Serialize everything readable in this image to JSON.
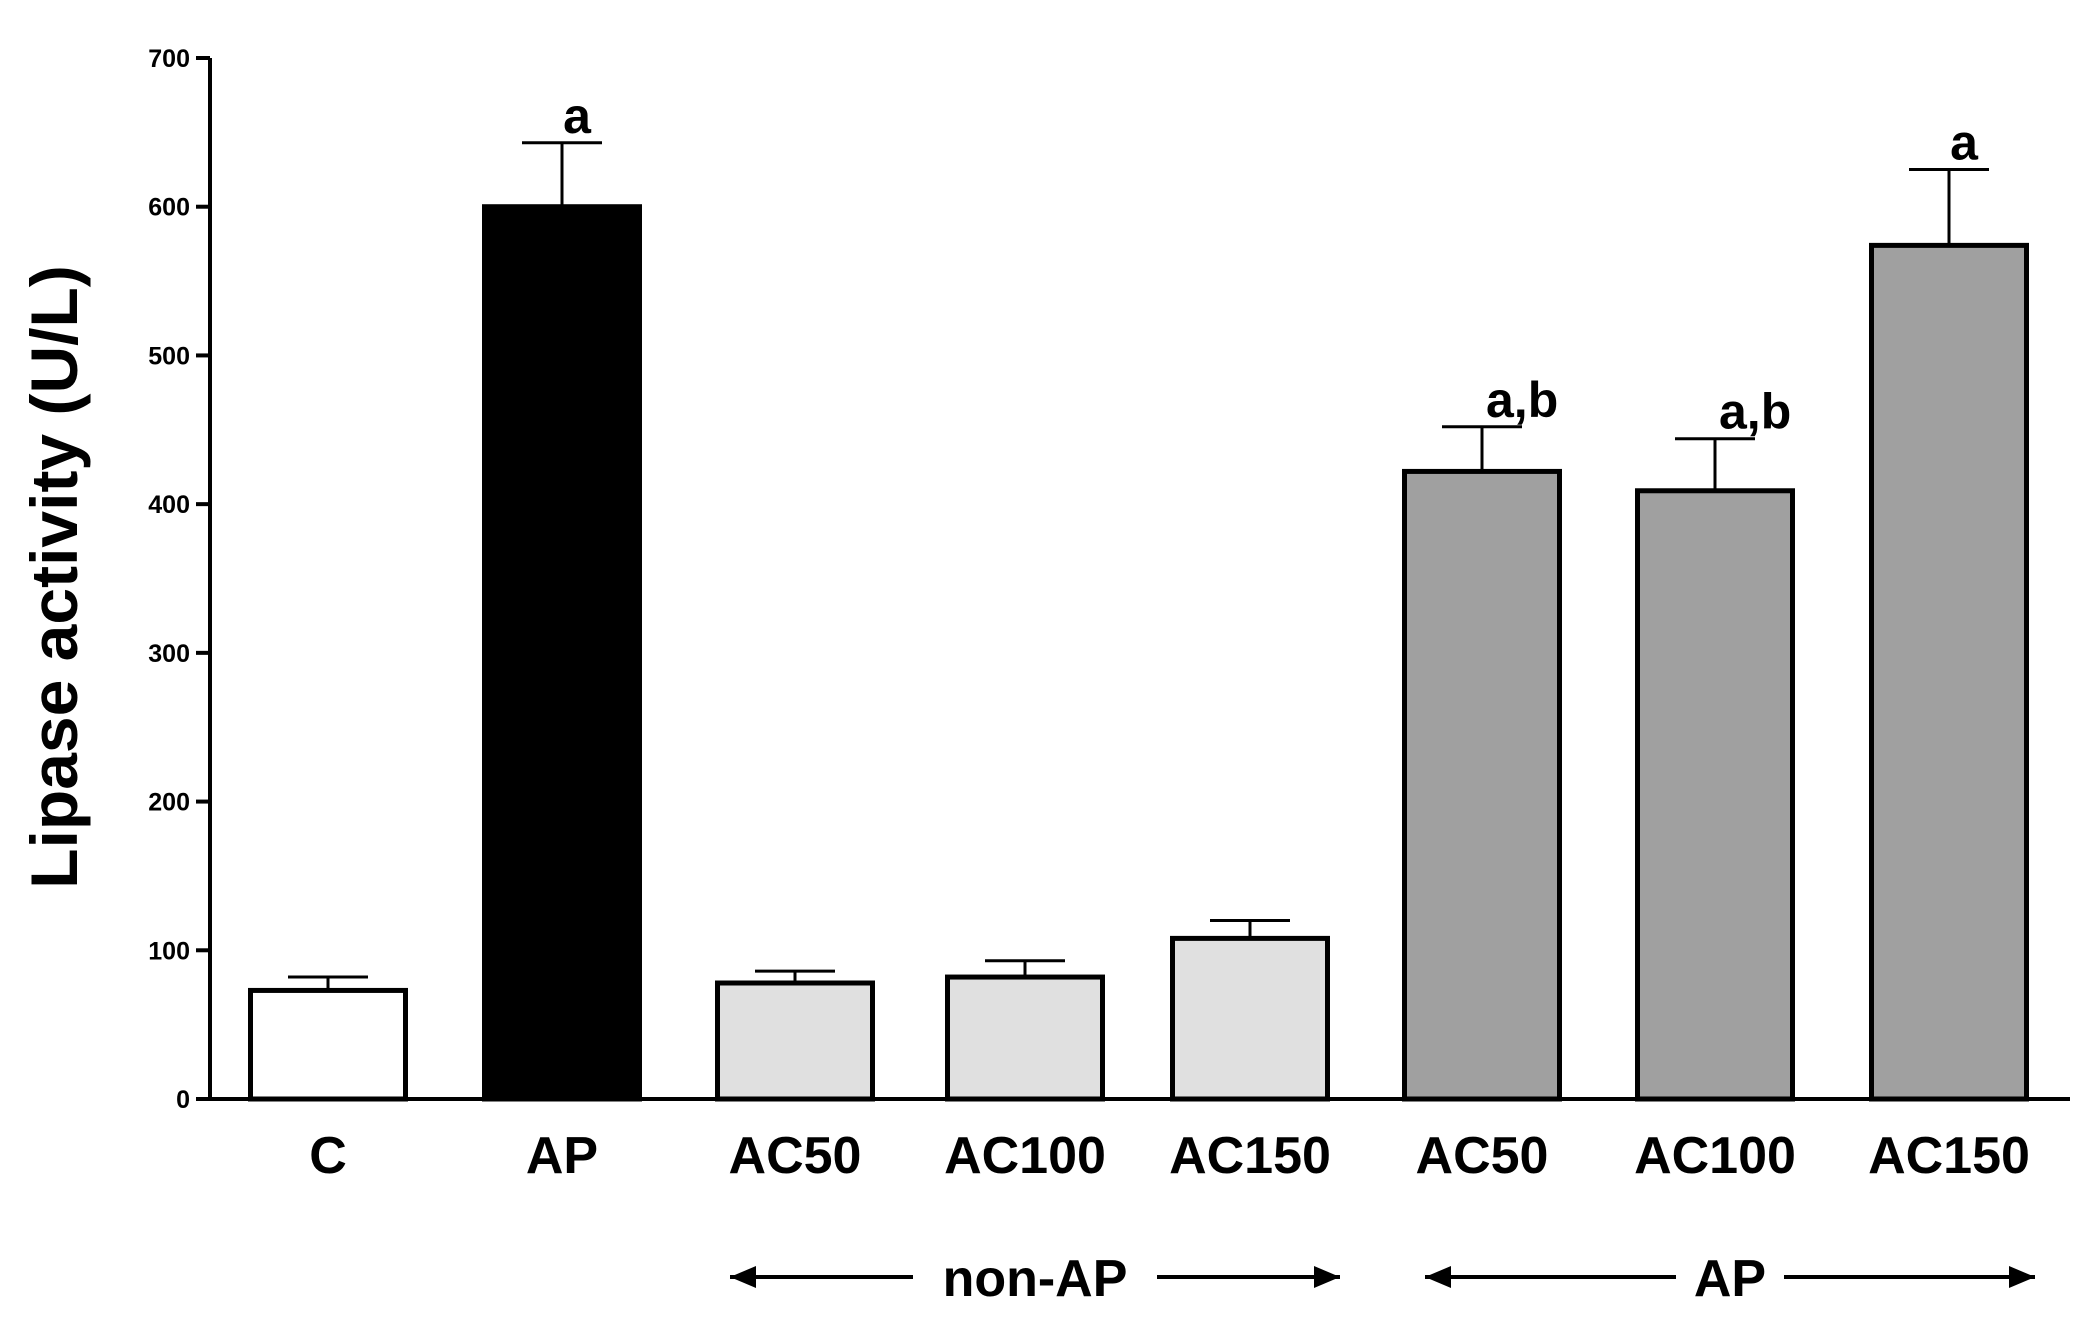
{
  "chart_data": {
    "type": "bar",
    "title": "",
    "xlabel": "",
    "ylabel": "Lipase activity (U/L)",
    "ylim": [
      0,
      700
    ],
    "yticks": [
      0,
      100,
      200,
      300,
      400,
      500,
      600,
      700
    ],
    "grid": false,
    "legend": "none",
    "categories": [
      "C",
      "AP",
      "AC50",
      "AC100",
      "AC150",
      "AC50",
      "AC100",
      "AC150"
    ],
    "values": [
      73,
      600,
      78,
      82,
      108,
      422,
      409,
      574
    ],
    "errors": [
      9,
      43,
      8,
      11,
      12,
      30,
      35,
      51
    ],
    "fill_colors": [
      "#ffffff",
      "#000000",
      "#e0e0e0",
      "#e0e0e0",
      "#e0e0e0",
      "#a0a0a0",
      "#a0a0a0",
      "#a0a0a0"
    ],
    "annotations": [
      "",
      "a",
      "",
      "",
      "",
      "a,b",
      "a,b",
      "a"
    ],
    "groups": [
      {
        "label": "non-AP",
        "start_index": 2,
        "end_index": 4
      },
      {
        "label": "AP",
        "start_index": 5,
        "end_index": 7
      }
    ]
  }
}
